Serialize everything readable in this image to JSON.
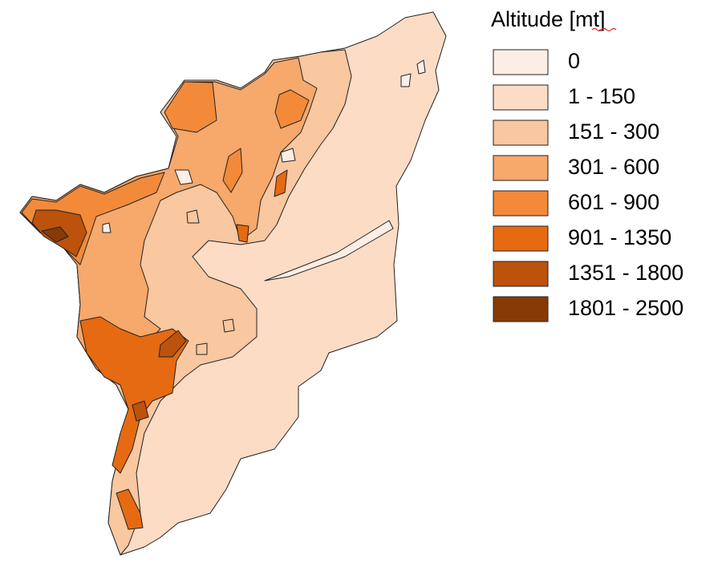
{
  "legend": {
    "title": "Altitude [mt]",
    "items": [
      {
        "label": "0",
        "color": "#fdeee5"
      },
      {
        "label": "1 - 150",
        "color": "#fcdcc5"
      },
      {
        "label": "151 - 300",
        "color": "#f9c7a0"
      },
      {
        "label": "301 - 600",
        "color": "#f7a86b"
      },
      {
        "label": "601 - 900",
        "color": "#f28a3a"
      },
      {
        "label": "901 - 1350",
        "color": "#e66a12"
      },
      {
        "label": "1351 - 1800",
        "color": "#bc520c"
      },
      {
        "label": "1801 - 2500",
        "color": "#873a06"
      }
    ]
  }
}
